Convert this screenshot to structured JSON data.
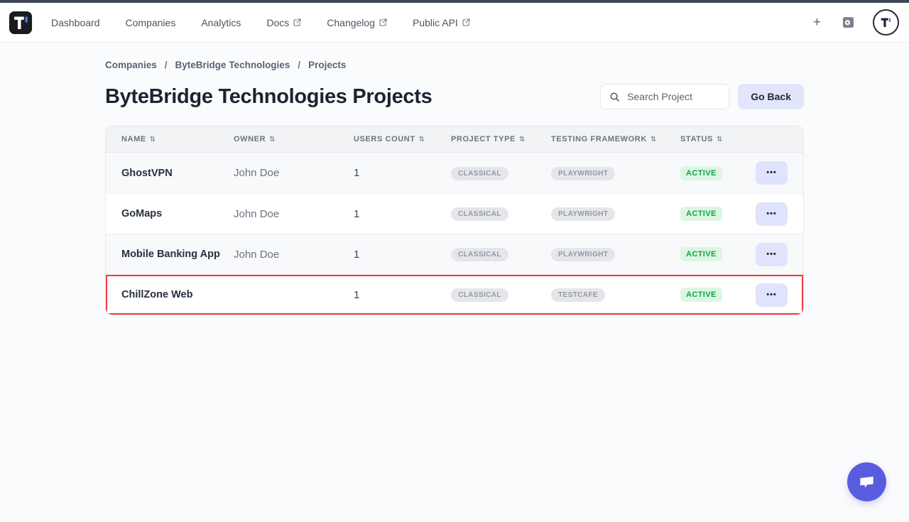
{
  "nav": {
    "links": [
      {
        "label": "Dashboard",
        "external": false
      },
      {
        "label": "Companies",
        "external": false
      },
      {
        "label": "Analytics",
        "external": false
      },
      {
        "label": "Docs",
        "external": true
      },
      {
        "label": "Changelog",
        "external": true
      },
      {
        "label": "Public API",
        "external": true
      }
    ],
    "plus_label": "+"
  },
  "breadcrumb": {
    "items": [
      "Companies",
      "ByteBridge Technologies",
      "Projects"
    ],
    "separator": "/"
  },
  "page": {
    "title": "ByteBridge Technologies Projects"
  },
  "search": {
    "placeholder": "Search Project"
  },
  "actions": {
    "go_back_label": "Go Back"
  },
  "icons": {
    "sort": "⇅",
    "actions_dots": "•••",
    "logo": "T-logo",
    "search": "magnifier",
    "search_docs": "docs-magnifier",
    "external_link": "arrow-up-right-box",
    "chat": "speech-bubble"
  },
  "table": {
    "columns": [
      "NAME",
      "OWNER",
      "USERS COUNT",
      "PROJECT TYPE",
      "TESTING FRAMEWORK",
      "STATUS"
    ],
    "rows": [
      {
        "name": "GhostVPN",
        "owner": "John Doe",
        "owner_blurred": false,
        "users_count": "1",
        "project_type": "CLASSICAL",
        "testing_framework": "PLAYWRIGHT",
        "status": "ACTIVE",
        "highlighted": false
      },
      {
        "name": "GoMaps",
        "owner": "John Doe",
        "owner_blurred": false,
        "users_count": "1",
        "project_type": "CLASSICAL",
        "testing_framework": "PLAYWRIGHT",
        "status": "ACTIVE",
        "highlighted": false
      },
      {
        "name": "Mobile Banking App",
        "owner": "John Doe",
        "owner_blurred": false,
        "users_count": "1",
        "project_type": "CLASSICAL",
        "testing_framework": "PLAYWRIGHT",
        "status": "ACTIVE",
        "highlighted": false
      },
      {
        "name": "ChillZone Web",
        "owner": "",
        "owner_blurred": true,
        "users_count": "1",
        "project_type": "CLASSICAL",
        "testing_framework": "TESTCAFE",
        "status": "ACTIVE",
        "highlighted": true
      }
    ]
  },
  "colors": {
    "brand_accent": "#4f7cf7",
    "top_strip": "#3f4653",
    "neutral_badge_bg": "#e5e6ea",
    "neutral_badge_text": "#9298a4",
    "active_badge_bg": "#dcf6e3",
    "active_badge_text": "#15a245",
    "highlight_border": "#ee3b42",
    "go_back_bg": "#e2e6fb",
    "actions_button_bg": "#dfe3fb",
    "chat_fab": "#5a5ce0"
  }
}
